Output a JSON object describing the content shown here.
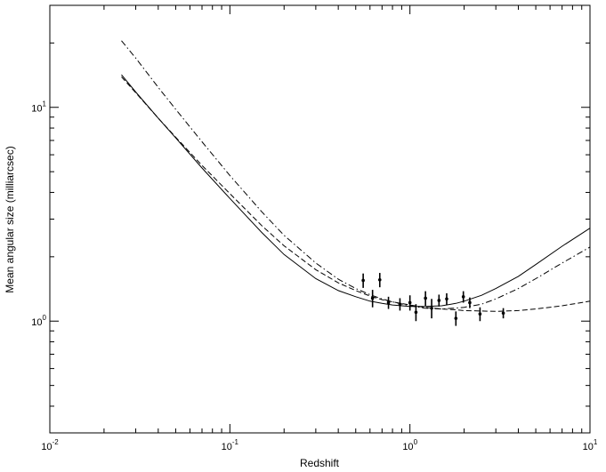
{
  "chart_data": {
    "type": "scatter",
    "xlabel": "Redshift",
    "ylabel": "Mean angular size (milliarcsec)",
    "x_scale": "log",
    "y_scale": "log",
    "xlim": [
      0.01,
      10
    ],
    "ylim": [
      0.3,
      30
    ],
    "grid": false,
    "x_ticks": [
      {
        "value": 0.01,
        "base": "10",
        "exp": "-2"
      },
      {
        "value": 0.1,
        "base": "10",
        "exp": "-1"
      },
      {
        "value": 1,
        "base": "10",
        "exp": "0"
      },
      {
        "value": 10,
        "base": "10",
        "exp": "1"
      }
    ],
    "y_ticks": [
      {
        "value": 1,
        "base": "10",
        "exp": "0"
      },
      {
        "value": 10,
        "base": "10",
        "exp": "1"
      }
    ],
    "series": [
      {
        "style": "solid",
        "x": [
          0.025,
          0.03,
          0.04,
          0.05,
          0.07,
          0.1,
          0.15,
          0.2,
          0.3,
          0.4,
          0.5,
          0.6,
          0.7,
          0.8,
          1.0,
          1.2,
          1.5,
          1.8,
          2.0,
          2.5,
          3.0,
          4.0,
          5.0,
          7.0,
          10.0
        ],
        "y": [
          14.2,
          11.8,
          8.9,
          7.2,
          5.2,
          3.75,
          2.6,
          2.05,
          1.58,
          1.39,
          1.3,
          1.24,
          1.21,
          1.19,
          1.17,
          1.17,
          1.18,
          1.21,
          1.24,
          1.32,
          1.42,
          1.62,
          1.84,
          2.24,
          2.72
        ]
      },
      {
        "style": "dashed",
        "x": [
          0.025,
          0.03,
          0.04,
          0.05,
          0.07,
          0.1,
          0.15,
          0.2,
          0.3,
          0.4,
          0.5,
          0.6,
          0.7,
          0.8,
          1.0,
          1.2,
          1.5,
          1.8,
          2.0,
          2.5,
          3.0,
          4.0,
          5.0,
          7.0,
          10.0
        ],
        "y": [
          13.9,
          11.7,
          8.9,
          7.25,
          5.35,
          3.95,
          2.8,
          2.25,
          1.74,
          1.51,
          1.39,
          1.31,
          1.26,
          1.23,
          1.19,
          1.16,
          1.14,
          1.13,
          1.12,
          1.115,
          1.11,
          1.12,
          1.14,
          1.18,
          1.24
        ]
      },
      {
        "style": "dash-dot",
        "x": [
          0.025,
          0.03,
          0.04,
          0.05,
          0.07,
          0.1,
          0.15,
          0.2,
          0.3,
          0.4,
          0.5,
          0.6,
          0.7,
          0.8,
          1.0,
          1.2,
          1.5,
          1.8,
          2.0,
          2.5,
          3.0,
          4.0,
          5.0,
          7.0,
          10.0
        ],
        "y": [
          20.5,
          17.0,
          12.4,
          9.8,
          6.9,
          4.8,
          3.25,
          2.52,
          1.87,
          1.57,
          1.42,
          1.33,
          1.27,
          1.23,
          1.18,
          1.15,
          1.14,
          1.15,
          1.16,
          1.2,
          1.27,
          1.42,
          1.58,
          1.87,
          2.22
        ]
      },
      {
        "style": "points-with-errorbars",
        "x": [
          0.55,
          0.62,
          0.68,
          0.76,
          0.88,
          1.0,
          1.08,
          1.22,
          1.32,
          1.45,
          1.6,
          1.8,
          1.98,
          2.15,
          2.45,
          3.3
        ],
        "y": [
          1.55,
          1.28,
          1.56,
          1.22,
          1.2,
          1.22,
          1.1,
          1.28,
          1.15,
          1.25,
          1.27,
          1.03,
          1.3,
          1.22,
          1.08,
          1.09
        ],
        "y_err": [
          0.12,
          0.12,
          0.12,
          0.08,
          0.08,
          0.1,
          0.1,
          0.1,
          0.12,
          0.08,
          0.08,
          0.08,
          0.08,
          0.07,
          0.08,
          0.06
        ]
      }
    ]
  }
}
